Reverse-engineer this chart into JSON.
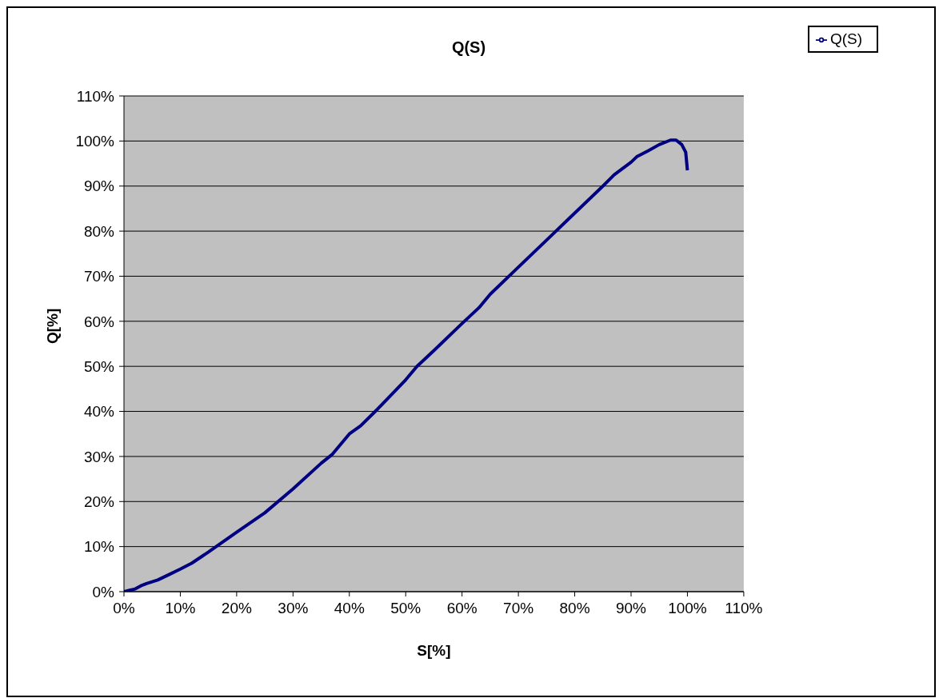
{
  "chart_data": {
    "type": "line",
    "title": "Q(S)",
    "xlabel": "S[%]",
    "ylabel": "Q[%]",
    "x": [
      0,
      1,
      2,
      3,
      4,
      6,
      8,
      10,
      12,
      15,
      20,
      25,
      30,
      35,
      37,
      40,
      42,
      45,
      50,
      52,
      55,
      60,
      63,
      65,
      70,
      75,
      80,
      85,
      87,
      90,
      91,
      93,
      95,
      97,
      98,
      99,
      99.7,
      100
    ],
    "series": [
      {
        "name": "Q(S)",
        "color": "#000080",
        "values": [
          0,
          0.3,
          0.6,
          1.3,
          1.8,
          2.6,
          3.8,
          5,
          6.3,
          8.8,
          13.2,
          17.5,
          22.8,
          28.5,
          30.5,
          35,
          36.8,
          40.5,
          47,
          50,
          53.5,
          59.5,
          63,
          66,
          72,
          78,
          84,
          90,
          92.5,
          95.3,
          96.5,
          97.8,
          99.2,
          100.2,
          100.2,
          99.2,
          97.5,
          93.5
        ]
      }
    ],
    "xlim": [
      0,
      110
    ],
    "ylim": [
      0,
      110
    ],
    "xticks": [
      {
        "value": 0,
        "label": "0%"
      },
      {
        "value": 10,
        "label": "10%"
      },
      {
        "value": 20,
        "label": "20%"
      },
      {
        "value": 30,
        "label": "30%"
      },
      {
        "value": 40,
        "label": "40%"
      },
      {
        "value": 50,
        "label": "50%"
      },
      {
        "value": 60,
        "label": "60%"
      },
      {
        "value": 70,
        "label": "70%"
      },
      {
        "value": 80,
        "label": "80%"
      },
      {
        "value": 90,
        "label": "90%"
      },
      {
        "value": 100,
        "label": "100%"
      },
      {
        "value": 110,
        "label": "110%"
      }
    ],
    "yticks": [
      {
        "value": 0,
        "label": "0%"
      },
      {
        "value": 10,
        "label": "10%"
      },
      {
        "value": 20,
        "label": "20%"
      },
      {
        "value": 30,
        "label": "30%"
      },
      {
        "value": 40,
        "label": "40%"
      },
      {
        "value": 50,
        "label": "50%"
      },
      {
        "value": 60,
        "label": "60%"
      },
      {
        "value": 70,
        "label": "70%"
      },
      {
        "value": 80,
        "label": "80%"
      },
      {
        "value": 90,
        "label": "90%"
      },
      {
        "value": 100,
        "label": "100%"
      },
      {
        "value": 110,
        "label": "110%"
      }
    ],
    "grid": "y",
    "legend": "top right",
    "marker": "none",
    "line_style": "solid"
  }
}
